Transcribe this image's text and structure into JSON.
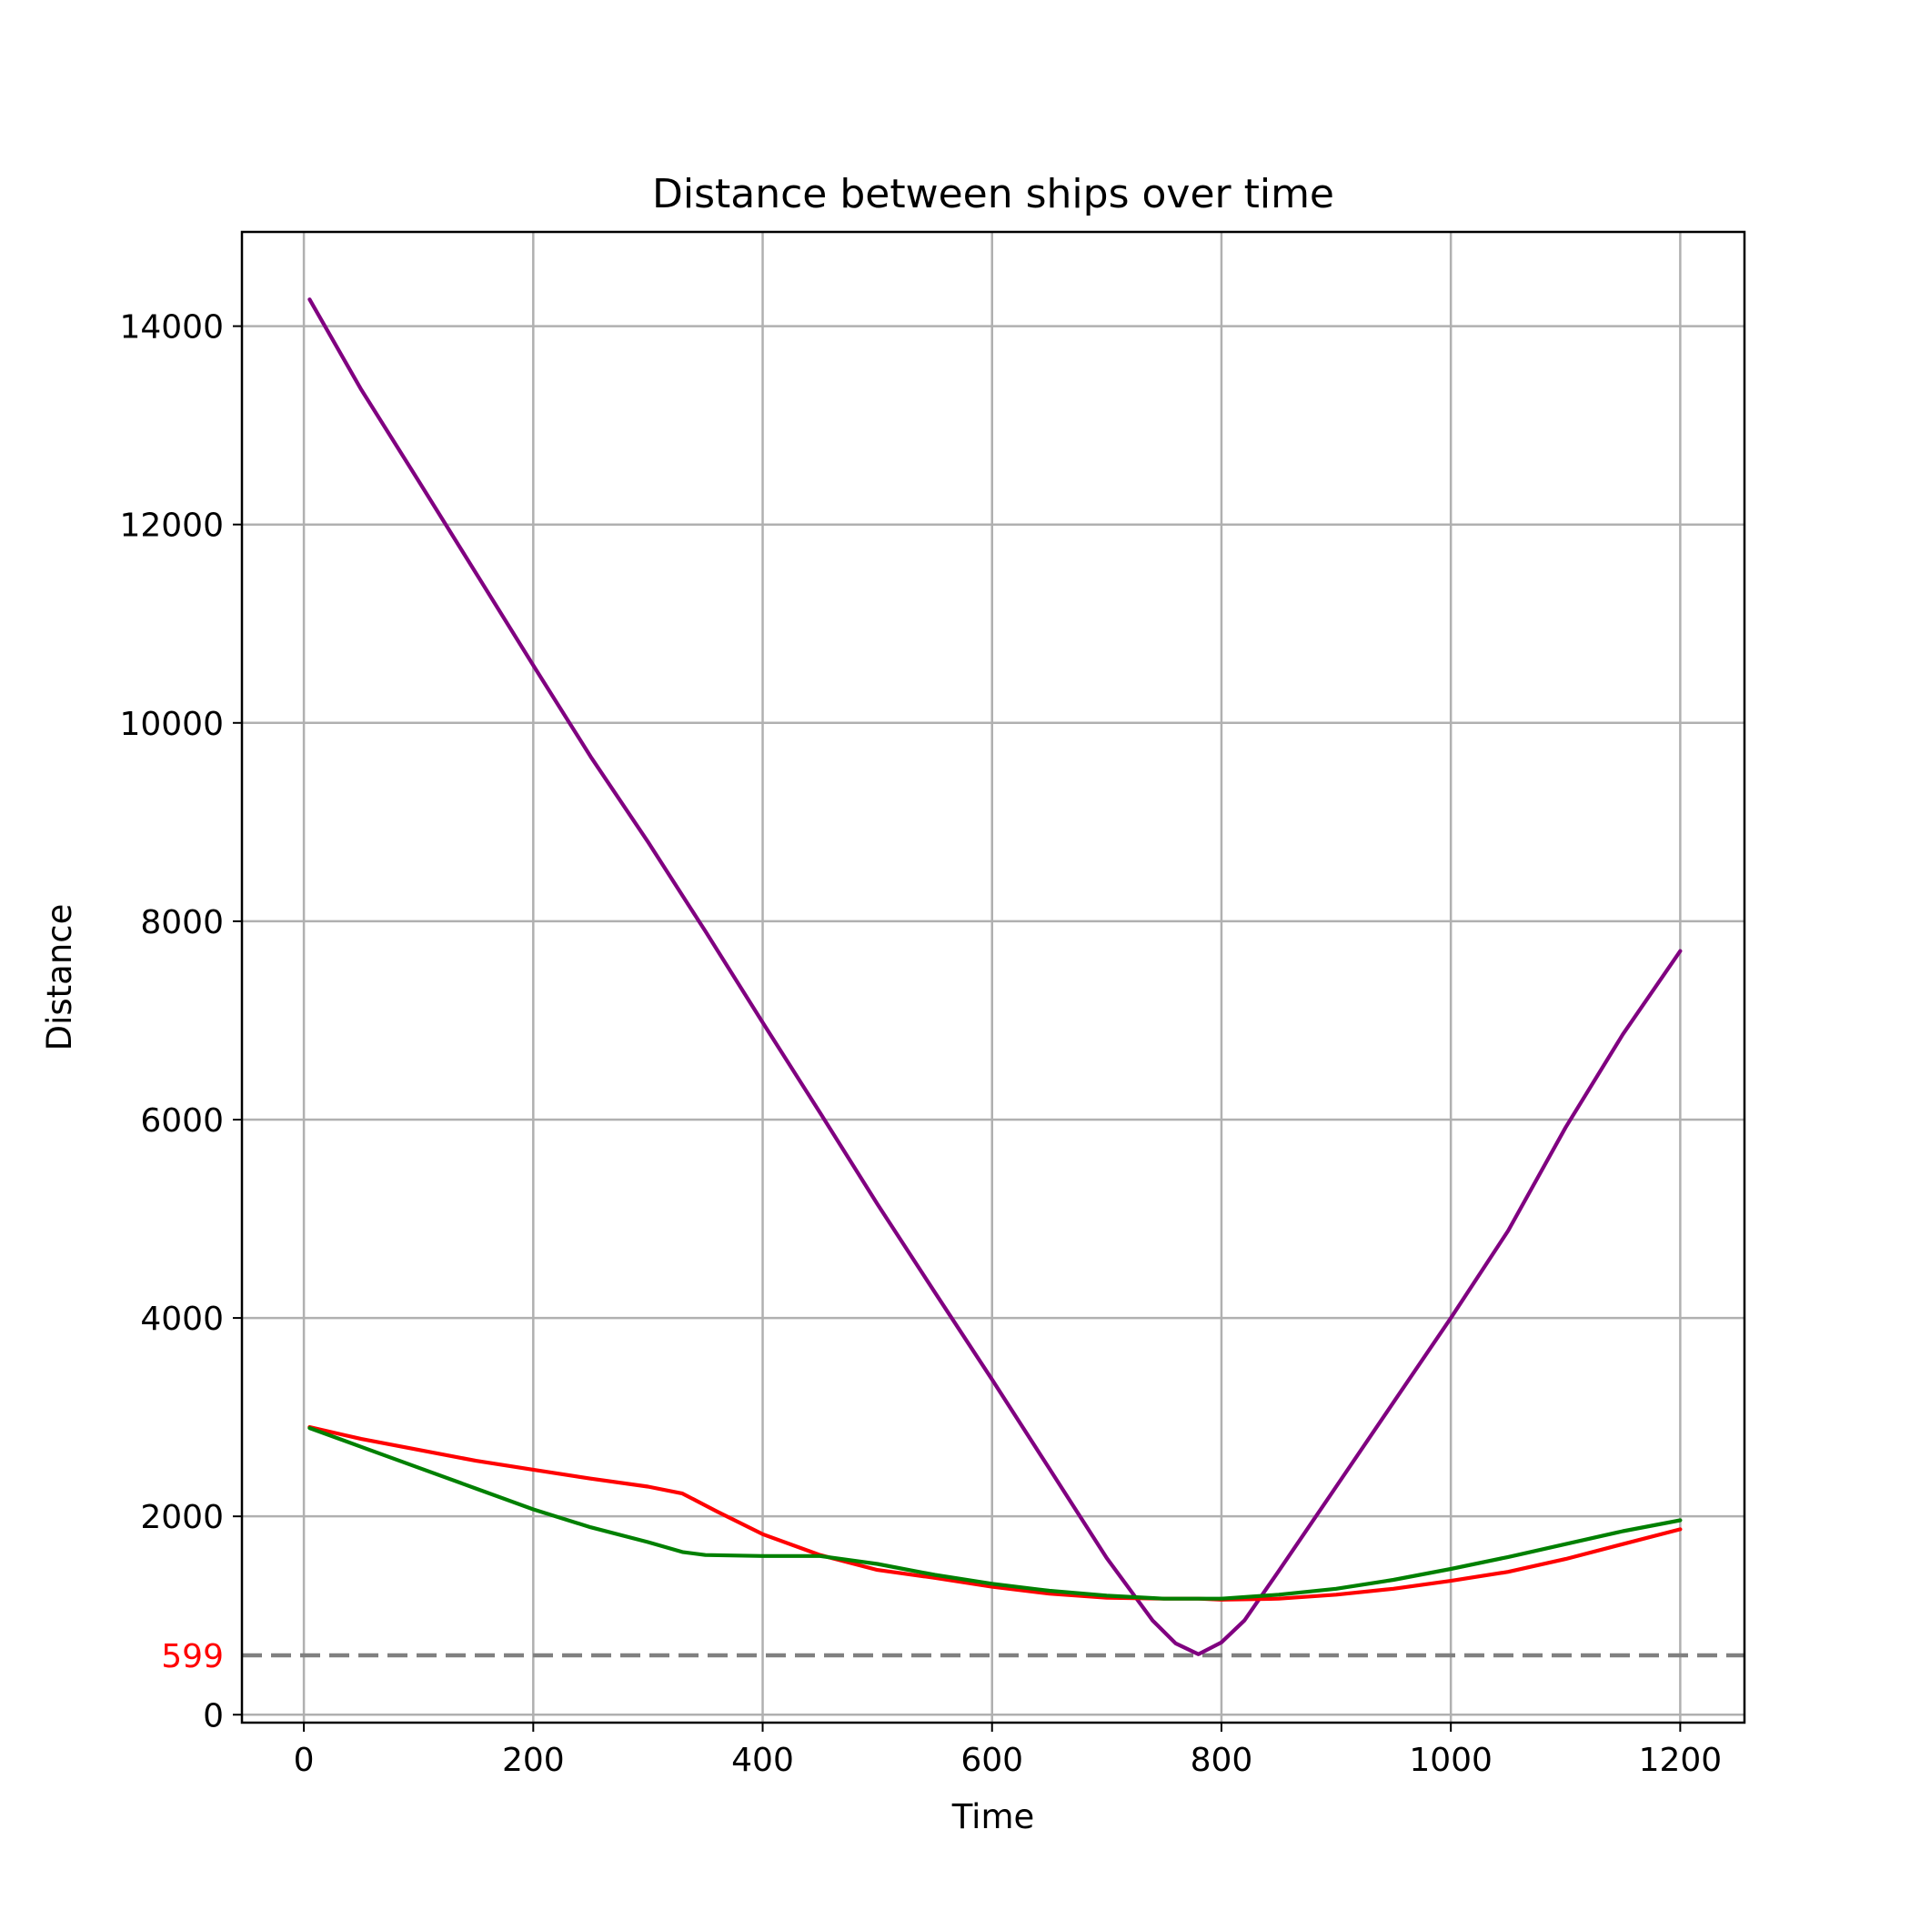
{
  "chart_data": {
    "type": "line",
    "title": "Distance between ships over time",
    "xlabel": "Time",
    "ylabel": "Distance",
    "xlim": [
      -54,
      1256
    ],
    "ylim": [
      -80,
      14950
    ],
    "xticks": [
      0,
      200,
      400,
      600,
      800,
      1000,
      1200
    ],
    "yticks": [
      0,
      2000,
      4000,
      6000,
      8000,
      10000,
      12000,
      14000
    ],
    "grid": true,
    "legend": "none",
    "reference_line": {
      "y": 599,
      "label": "599",
      "label_color": "#ff0000",
      "line_color": "#808080",
      "style": "dashed"
    },
    "series": [
      {
        "color": "#800080",
        "x": [
          5,
          50,
          100,
          150,
          200,
          250,
          300,
          350,
          400,
          450,
          500,
          550,
          600,
          650,
          700,
          740,
          760,
          780,
          800,
          820,
          850,
          900,
          950,
          1000,
          1050,
          1100,
          1150,
          1200
        ],
        "y": [
          14270,
          13360,
          12440,
          11510,
          10580,
          9660,
          8800,
          7900,
          6980,
          6070,
          5150,
          4260,
          3380,
          2480,
          1580,
          950,
          720,
          610,
          730,
          950,
          1450,
          2300,
          3150,
          4000,
          4880,
          5920,
          6860,
          7700
        ]
      },
      {
        "color": "#ff0000",
        "x": [
          5,
          50,
          100,
          150,
          200,
          250,
          300,
          330,
          360,
          400,
          450,
          500,
          550,
          600,
          650,
          700,
          750,
          780,
          800,
          850,
          900,
          950,
          1000,
          1050,
          1100,
          1150,
          1200
        ],
        "y": [
          2900,
          2780,
          2670,
          2560,
          2470,
          2380,
          2300,
          2230,
          2050,
          1820,
          1610,
          1460,
          1380,
          1290,
          1220,
          1180,
          1170,
          1170,
          1160,
          1170,
          1210,
          1270,
          1350,
          1440,
          1570,
          1720,
          1870
        ]
      },
      {
        "color": "#008000",
        "x": [
          5,
          50,
          100,
          150,
          200,
          250,
          300,
          330,
          350,
          400,
          450,
          500,
          550,
          600,
          650,
          700,
          750,
          780,
          800,
          850,
          900,
          950,
          1000,
          1050,
          1100,
          1150,
          1200
        ],
        "y": [
          2890,
          2700,
          2490,
          2280,
          2070,
          1890,
          1740,
          1640,
          1610,
          1600,
          1600,
          1520,
          1410,
          1320,
          1250,
          1200,
          1170,
          1170,
          1170,
          1210,
          1270,
          1360,
          1470,
          1590,
          1720,
          1850,
          1960
        ]
      }
    ]
  }
}
